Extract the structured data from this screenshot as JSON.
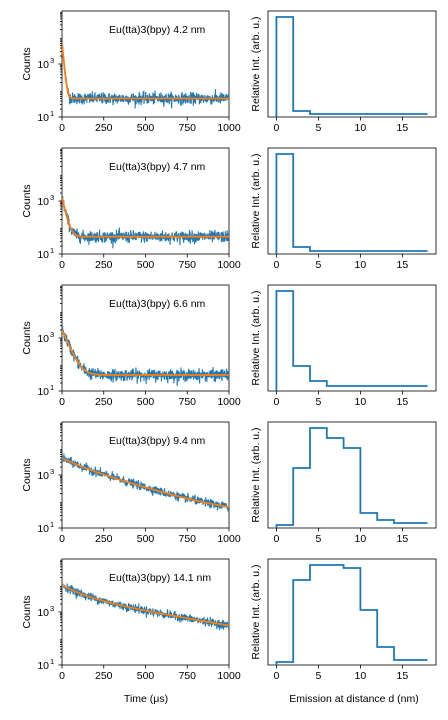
{
  "colors": {
    "measured": "#1f77b4",
    "fit": "#ff7f0e",
    "axes": "#000000"
  },
  "x_labels": {
    "decay": "Time (μs)",
    "profile": "Emission at distance d (nm)"
  },
  "y_labels": {
    "decay": "Counts",
    "profile": "Relative Int. (arb. u.)"
  },
  "chart_data": [
    {
      "type": "line",
      "panel": "decay",
      "row": 1,
      "annotation": "Eu(tta)3(bpy) 4.2 nm",
      "x_ticks": [
        0,
        250,
        500,
        750,
        1000
      ],
      "xlim": [
        0,
        1000
      ],
      "y_scale": "log",
      "y_tick_labels": [
        "10",
        "10"
      ],
      "y_tick_exponents": [
        "1",
        "3"
      ],
      "ylim": [
        10,
        100000
      ],
      "series": [
        {
          "role": "measured",
          "color": "#1f77b4",
          "background": 50,
          "amplitudes": [
            6000
          ],
          "taus": [
            7
          ],
          "noise": 0.25
        },
        {
          "role": "fit",
          "color": "#ff7f0e",
          "background": 50,
          "amplitudes": [
            6000
          ],
          "taus": [
            7
          ]
        }
      ],
      "grid": false
    },
    {
      "type": "line",
      "panel": "profile",
      "row": 1,
      "step_edges": [
        0,
        2,
        4,
        6,
        8,
        10,
        12,
        14,
        16,
        18
      ],
      "values": [
        1.0,
        0.06,
        0.03,
        0.03,
        0.03,
        0.03,
        0.03,
        0.03,
        0.03
      ],
      "x_ticks": [
        0,
        5,
        10,
        15
      ],
      "xlim": [
        -1,
        19
      ],
      "ylim": [
        0,
        1.06
      ],
      "color": "#1f77b4",
      "grid": false
    },
    {
      "type": "line",
      "panel": "decay",
      "row": 2,
      "annotation": "Eu(tta)3(bpy) 4.7 nm",
      "x_ticks": [
        0,
        250,
        500,
        750,
        1000
      ],
      "xlim": [
        0,
        1000
      ],
      "y_scale": "log",
      "y_tick_labels": [
        "10",
        "10"
      ],
      "y_tick_exponents": [
        "1",
        "3"
      ],
      "ylim": [
        10,
        100000
      ],
      "series": [
        {
          "role": "measured",
          "color": "#1f77b4",
          "background": 45,
          "amplitudes": [
            1300
          ],
          "taus": [
            16
          ],
          "noise": 0.25
        },
        {
          "role": "fit",
          "color": "#ff7f0e",
          "background": 45,
          "amplitudes": [
            1300
          ],
          "taus": [
            16
          ]
        }
      ],
      "grid": false
    },
    {
      "type": "line",
      "panel": "profile",
      "row": 2,
      "step_edges": [
        0,
        2,
        4,
        6,
        8,
        10,
        12,
        14,
        16,
        18
      ],
      "values": [
        1.0,
        0.07,
        0.03,
        0.03,
        0.03,
        0.03,
        0.03,
        0.03,
        0.03
      ],
      "x_ticks": [
        0,
        5,
        10,
        15
      ],
      "xlim": [
        -1,
        19
      ],
      "ylim": [
        0,
        1.06
      ],
      "color": "#1f77b4",
      "grid": false
    },
    {
      "type": "line",
      "panel": "decay",
      "row": 3,
      "annotation": "Eu(tta)3(bpy) 6.6 nm",
      "x_ticks": [
        0,
        250,
        500,
        750,
        1000
      ],
      "xlim": [
        0,
        1000
      ],
      "y_scale": "log",
      "y_tick_labels": [
        "10",
        "10"
      ],
      "y_tick_exponents": [
        "1",
        "3"
      ],
      "ylim": [
        10,
        100000
      ],
      "series": [
        {
          "role": "measured",
          "color": "#1f77b4",
          "background": 40,
          "amplitudes": [
            2000
          ],
          "taus": [
            30
          ],
          "noise": 0.25
        },
        {
          "role": "fit",
          "color": "#ff7f0e",
          "background": 40,
          "amplitudes": [
            2000
          ],
          "taus": [
            30
          ]
        }
      ],
      "grid": false
    },
    {
      "type": "line",
      "panel": "profile",
      "row": 3,
      "step_edges": [
        0,
        2,
        4,
        6,
        8,
        10,
        12,
        14,
        16,
        18
      ],
      "values": [
        1.0,
        0.25,
        0.1,
        0.05,
        0.05,
        0.05,
        0.05,
        0.05,
        0.05
      ],
      "x_ticks": [
        0,
        5,
        10,
        15
      ],
      "xlim": [
        -1,
        19
      ],
      "ylim": [
        0,
        1.06
      ],
      "color": "#1f77b4",
      "grid": false
    },
    {
      "type": "line",
      "panel": "decay",
      "row": 4,
      "annotation": "Eu(tta)3(bpy) 9.4 nm",
      "x_ticks": [
        0,
        250,
        500,
        750,
        1000
      ],
      "xlim": [
        0,
        1000
      ],
      "y_scale": "log",
      "y_tick_labels": [
        "10",
        "10"
      ],
      "y_tick_exponents": [
        "1",
        "3"
      ],
      "ylim": [
        10,
        100000
      ],
      "series": [
        {
          "role": "measured",
          "color": "#1f77b4",
          "background": 30,
          "amplitudes": [
            1300,
            3000
          ],
          "taus": [
            80,
            220
          ],
          "noise": 0.18
        },
        {
          "role": "fit",
          "color": "#ff7f0e",
          "background": 30,
          "amplitudes": [
            1300,
            3000
          ],
          "taus": [
            80,
            220
          ]
        }
      ],
      "grid": false
    },
    {
      "type": "line",
      "panel": "profile",
      "row": 4,
      "step_edges": [
        0,
        2,
        4,
        6,
        8,
        10,
        12,
        14,
        16,
        18
      ],
      "values": [
        0.03,
        0.6,
        1.0,
        0.9,
        0.8,
        0.15,
        0.08,
        0.05,
        0.05
      ],
      "x_ticks": [
        0,
        5,
        10,
        15
      ],
      "xlim": [
        -1,
        19
      ],
      "ylim": [
        0,
        1.06
      ],
      "color": "#1f77b4",
      "grid": false
    },
    {
      "type": "line",
      "panel": "decay",
      "row": 5,
      "annotation": "Eu(tta)3(bpy) 14.1 nm",
      "x_ticks": [
        0,
        250,
        500,
        750,
        1000
      ],
      "xlim": [
        0,
        1000
      ],
      "y_scale": "log",
      "y_tick_labels": [
        "10",
        "10"
      ],
      "y_tick_exponents": [
        "1",
        "3"
      ],
      "ylim": [
        10,
        100000
      ],
      "series": [
        {
          "role": "measured",
          "color": "#1f77b4",
          "background": 20,
          "amplitudes": [
            6000,
            4000
          ],
          "taus": [
            100,
            380
          ],
          "noise": 0.18
        },
        {
          "role": "fit",
          "color": "#ff7f0e",
          "background": 20,
          "amplitudes": [
            6000,
            4000
          ],
          "taus": [
            100,
            380
          ]
        }
      ],
      "grid": false
    },
    {
      "type": "line",
      "panel": "profile",
      "row": 5,
      "step_edges": [
        0,
        2,
        4,
        6,
        8,
        10,
        12,
        14,
        16,
        18
      ],
      "values": [
        0.03,
        0.85,
        1.0,
        1.0,
        0.97,
        0.55,
        0.18,
        0.05,
        0.05
      ],
      "x_ticks": [
        0,
        5,
        10,
        15
      ],
      "xlim": [
        -1,
        19
      ],
      "ylim": [
        0,
        1.06
      ],
      "color": "#1f77b4",
      "grid": false
    }
  ]
}
